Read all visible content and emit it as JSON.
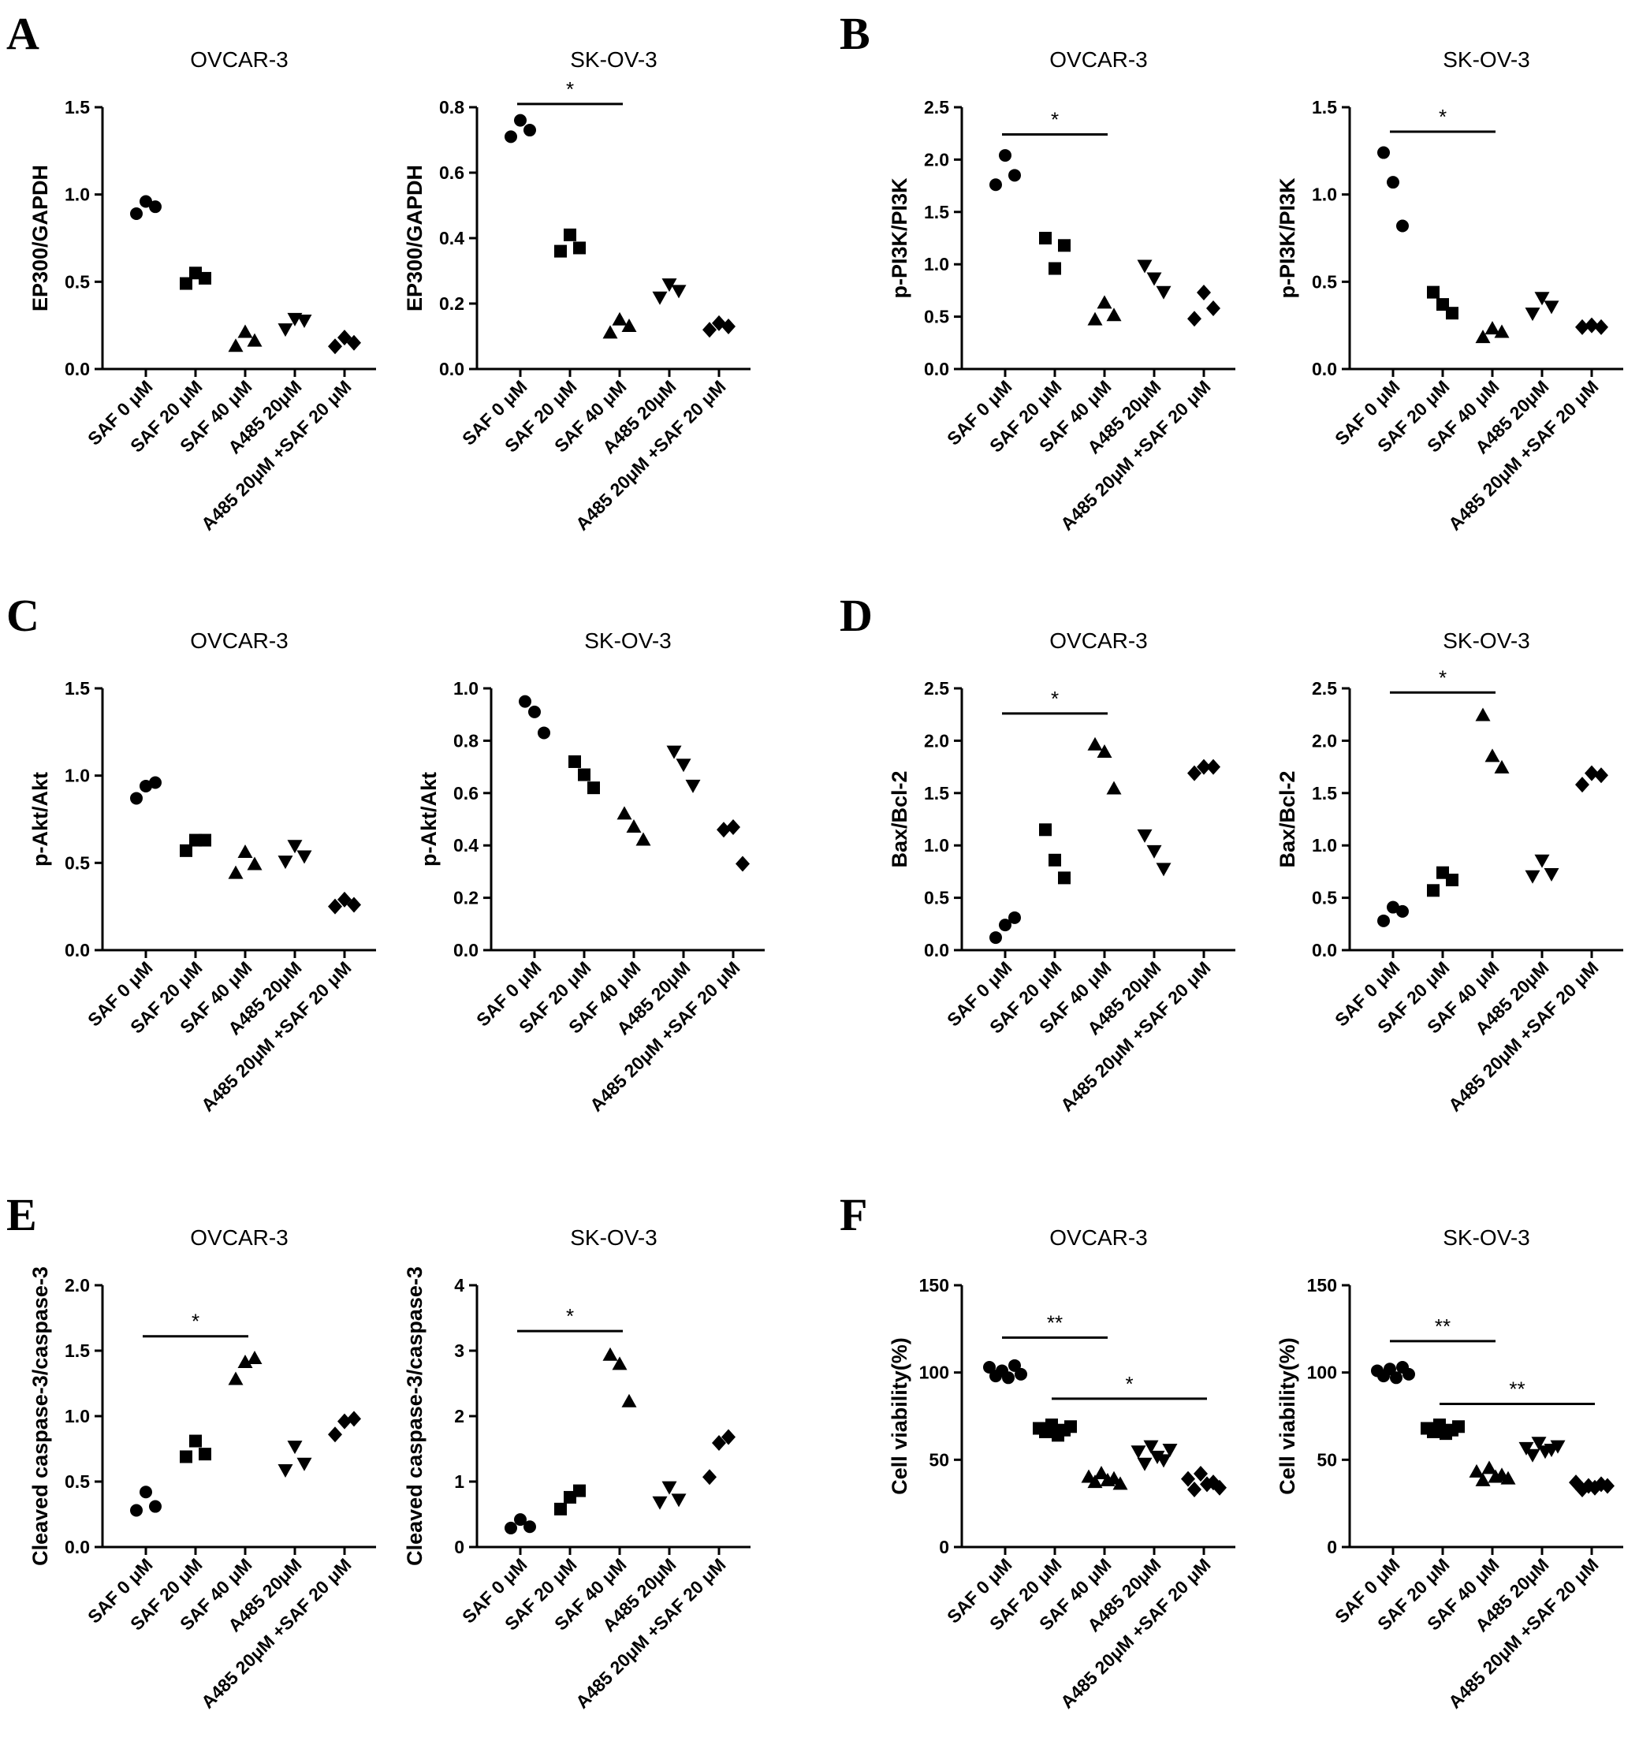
{
  "panel_letters": [
    "A",
    "B",
    "C",
    "D",
    "E",
    "F"
  ],
  "categories": [
    "SAF 0 μM",
    "SAF 20 μM",
    "SAF 40 μM",
    "A485 20μM",
    "A485 20μM +SAF 20 μM"
  ],
  "chart_data": [
    {
      "id": "A1",
      "panel": "A",
      "type": "scatter",
      "title": "OVCAR-3",
      "ylabel": "EP300/GAPDH",
      "ylim": [
        0,
        1.5
      ],
      "yticks": [
        "0.0",
        "0.5",
        "1.0",
        "1.5"
      ],
      "series": [
        [
          0.89,
          0.96,
          0.93
        ],
        [
          0.49,
          0.55,
          0.52
        ],
        [
          0.13,
          0.21,
          0.16
        ],
        [
          0.23,
          0.29,
          0.28
        ],
        [
          0.13,
          0.18,
          0.15
        ]
      ],
      "significance": []
    },
    {
      "id": "A2",
      "panel": "A",
      "type": "scatter",
      "title": "SK-OV-3",
      "ylabel": "EP300/GAPDH",
      "ylim": [
        0,
        0.8
      ],
      "yticks": [
        "0.0",
        "0.2",
        "0.4",
        "0.6",
        "0.8"
      ],
      "series": [
        [
          0.71,
          0.76,
          0.73
        ],
        [
          0.36,
          0.41,
          0.37
        ],
        [
          0.11,
          0.15,
          0.13
        ],
        [
          0.22,
          0.26,
          0.24
        ],
        [
          0.12,
          0.14,
          0.13
        ]
      ],
      "significance": [
        {
          "label": "*",
          "from": 0,
          "to": 2,
          "y": 0.81
        }
      ]
    },
    {
      "id": "B1",
      "panel": "B",
      "type": "scatter",
      "title": "OVCAR-3",
      "ylabel": "p-PI3K/PI3K",
      "ylim": [
        0,
        2.5
      ],
      "yticks": [
        "0.0",
        "0.5",
        "1.0",
        "1.5",
        "2.0",
        "2.5"
      ],
      "series": [
        [
          1.76,
          2.04,
          1.85
        ],
        [
          1.25,
          0.96,
          1.18
        ],
        [
          0.47,
          0.63,
          0.51
        ],
        [
          0.99,
          0.87,
          0.74
        ],
        [
          0.48,
          0.73,
          0.58
        ]
      ],
      "significance": [
        {
          "label": "*",
          "from": 0,
          "to": 2,
          "y": 2.24
        }
      ]
    },
    {
      "id": "B2",
      "panel": "B",
      "type": "scatter",
      "title": "SK-OV-3",
      "ylabel": "p-PI3K/PI3K",
      "ylim": [
        0,
        1.5
      ],
      "yticks": [
        "0.0",
        "0.5",
        "1.0",
        "1.5"
      ],
      "series": [
        [
          1.24,
          1.07,
          0.82
        ],
        [
          0.44,
          0.37,
          0.32
        ],
        [
          0.18,
          0.23,
          0.21
        ],
        [
          0.32,
          0.41,
          0.36
        ],
        [
          0.24,
          0.25,
          0.24
        ]
      ],
      "significance": [
        {
          "label": "*",
          "from": 0,
          "to": 2,
          "y": 1.36
        }
      ]
    },
    {
      "id": "C1",
      "panel": "C",
      "type": "scatter",
      "title": "OVCAR-3",
      "ylabel": "p-Akt/Akt",
      "ylim": [
        0,
        1.5
      ],
      "yticks": [
        "0.0",
        "0.5",
        "1.0",
        "1.5"
      ],
      "series": [
        [
          0.87,
          0.94,
          0.96
        ],
        [
          0.57,
          0.63,
          0.63
        ],
        [
          0.44,
          0.56,
          0.49
        ],
        [
          0.51,
          0.6,
          0.54
        ],
        [
          0.25,
          0.29,
          0.26
        ]
      ],
      "significance": []
    },
    {
      "id": "C2",
      "panel": "C",
      "type": "scatter",
      "title": "SK-OV-3",
      "ylabel": "p-Akt/Akt",
      "ylim": [
        0,
        1.0
      ],
      "yticks": [
        "0.0",
        "0.2",
        "0.4",
        "0.6",
        "0.8",
        "1.0"
      ],
      "series": [
        [
          0.95,
          0.91,
          0.83
        ],
        [
          0.72,
          0.67,
          0.62
        ],
        [
          0.52,
          0.47,
          0.42
        ],
        [
          0.76,
          0.71,
          0.63
        ],
        [
          0.46,
          0.47,
          0.33
        ]
      ],
      "significance": []
    },
    {
      "id": "D1",
      "panel": "D",
      "type": "scatter",
      "title": "OVCAR-3",
      "ylabel": "Bax/Bcl-2",
      "ylim": [
        0,
        2.5
      ],
      "yticks": [
        "0.0",
        "0.5",
        "1.0",
        "1.5",
        "2.0",
        "2.5"
      ],
      "series": [
        [
          0.12,
          0.24,
          0.31
        ],
        [
          1.15,
          0.86,
          0.69
        ],
        [
          1.96,
          1.89,
          1.54
        ],
        [
          1.1,
          0.95,
          0.78
        ],
        [
          1.69,
          1.75,
          1.75
        ]
      ],
      "significance": [
        {
          "label": "*",
          "from": 0,
          "to": 2,
          "y": 2.26
        }
      ]
    },
    {
      "id": "D2",
      "panel": "D",
      "type": "scatter",
      "title": "SK-OV-3",
      "ylabel": "Bax/Bcl-2",
      "ylim": [
        0,
        2.5
      ],
      "yticks": [
        "0.0",
        "0.5",
        "1.0",
        "1.5",
        "2.0",
        "2.5"
      ],
      "series": [
        [
          0.28,
          0.41,
          0.37
        ],
        [
          0.57,
          0.74,
          0.67
        ],
        [
          2.24,
          1.85,
          1.74
        ],
        [
          0.71,
          0.86,
          0.73
        ],
        [
          1.58,
          1.69,
          1.67
        ]
      ],
      "significance": [
        {
          "label": "*",
          "from": 0,
          "to": 2,
          "y": 2.46
        }
      ]
    },
    {
      "id": "E1",
      "panel": "E",
      "type": "scatter",
      "title": "OVCAR-3",
      "ylabel": "Cleaved caspase-3/caspase-3",
      "ylim": [
        0,
        2.0
      ],
      "yticks": [
        "0.0",
        "0.5",
        "1.0",
        "1.5",
        "2.0"
      ],
      "series": [
        [
          0.28,
          0.42,
          0.31
        ],
        [
          0.69,
          0.81,
          0.71
        ],
        [
          1.28,
          1.41,
          1.44
        ],
        [
          0.59,
          0.77,
          0.64
        ],
        [
          0.86,
          0.96,
          0.98
        ]
      ],
      "significance": [
        {
          "label": "*",
          "from": 0,
          "to": 2,
          "y": 1.61
        }
      ]
    },
    {
      "id": "E2",
      "panel": "E",
      "type": "scatter",
      "title": "SK-OV-3",
      "ylabel": "Cleaved caspase-3/caspase-3",
      "ylim": [
        0,
        4
      ],
      "yticks": [
        "0",
        "1",
        "2",
        "3",
        "4"
      ],
      "series": [
        [
          0.29,
          0.42,
          0.31
        ],
        [
          0.58,
          0.76,
          0.86
        ],
        [
          2.93,
          2.79,
          2.22
        ],
        [
          0.69,
          0.92,
          0.73
        ],
        [
          1.07,
          1.59,
          1.68
        ]
      ],
      "significance": [
        {
          "label": "*",
          "from": 0,
          "to": 2,
          "y": 3.3
        }
      ]
    },
    {
      "id": "F1",
      "panel": "F",
      "type": "scatter",
      "title": "OVCAR-3",
      "ylabel": "Cell viability(%)",
      "ylim": [
        0,
        150
      ],
      "yticks": [
        "0",
        "50",
        "100",
        "150"
      ],
      "series": [
        [
          103,
          98,
          101,
          97,
          104,
          99
        ],
        [
          68,
          66,
          70,
          64,
          67,
          69
        ],
        [
          40,
          37,
          42,
          38,
          39,
          36
        ],
        [
          55,
          48,
          58,
          52,
          50,
          56
        ],
        [
          39,
          33,
          42,
          36,
          37,
          34
        ]
      ],
      "significance": [
        {
          "label": "**",
          "from": 0,
          "to": 2,
          "y": 120
        },
        {
          "label": "*",
          "from": 1,
          "to": 4,
          "y": 85
        }
      ]
    },
    {
      "id": "F2",
      "panel": "F",
      "type": "scatter",
      "title": "SK-OV-3",
      "ylabel": "Cell viability(%)",
      "ylim": [
        0,
        150
      ],
      "yticks": [
        "0",
        "50",
        "100",
        "150"
      ],
      "series": [
        [
          101,
          98,
          102,
          97,
          103,
          99
        ],
        [
          68,
          66,
          70,
          65,
          67,
          69
        ],
        [
          43,
          38,
          45,
          40,
          41,
          39
        ],
        [
          57,
          53,
          60,
          55,
          56,
          58
        ],
        [
          37,
          33,
          35,
          34,
          36,
          35
        ]
      ],
      "significance": [
        {
          "label": "**",
          "from": 0,
          "to": 2,
          "y": 118
        },
        {
          "label": "**",
          "from": 1,
          "to": 4,
          "y": 82
        }
      ]
    }
  ]
}
